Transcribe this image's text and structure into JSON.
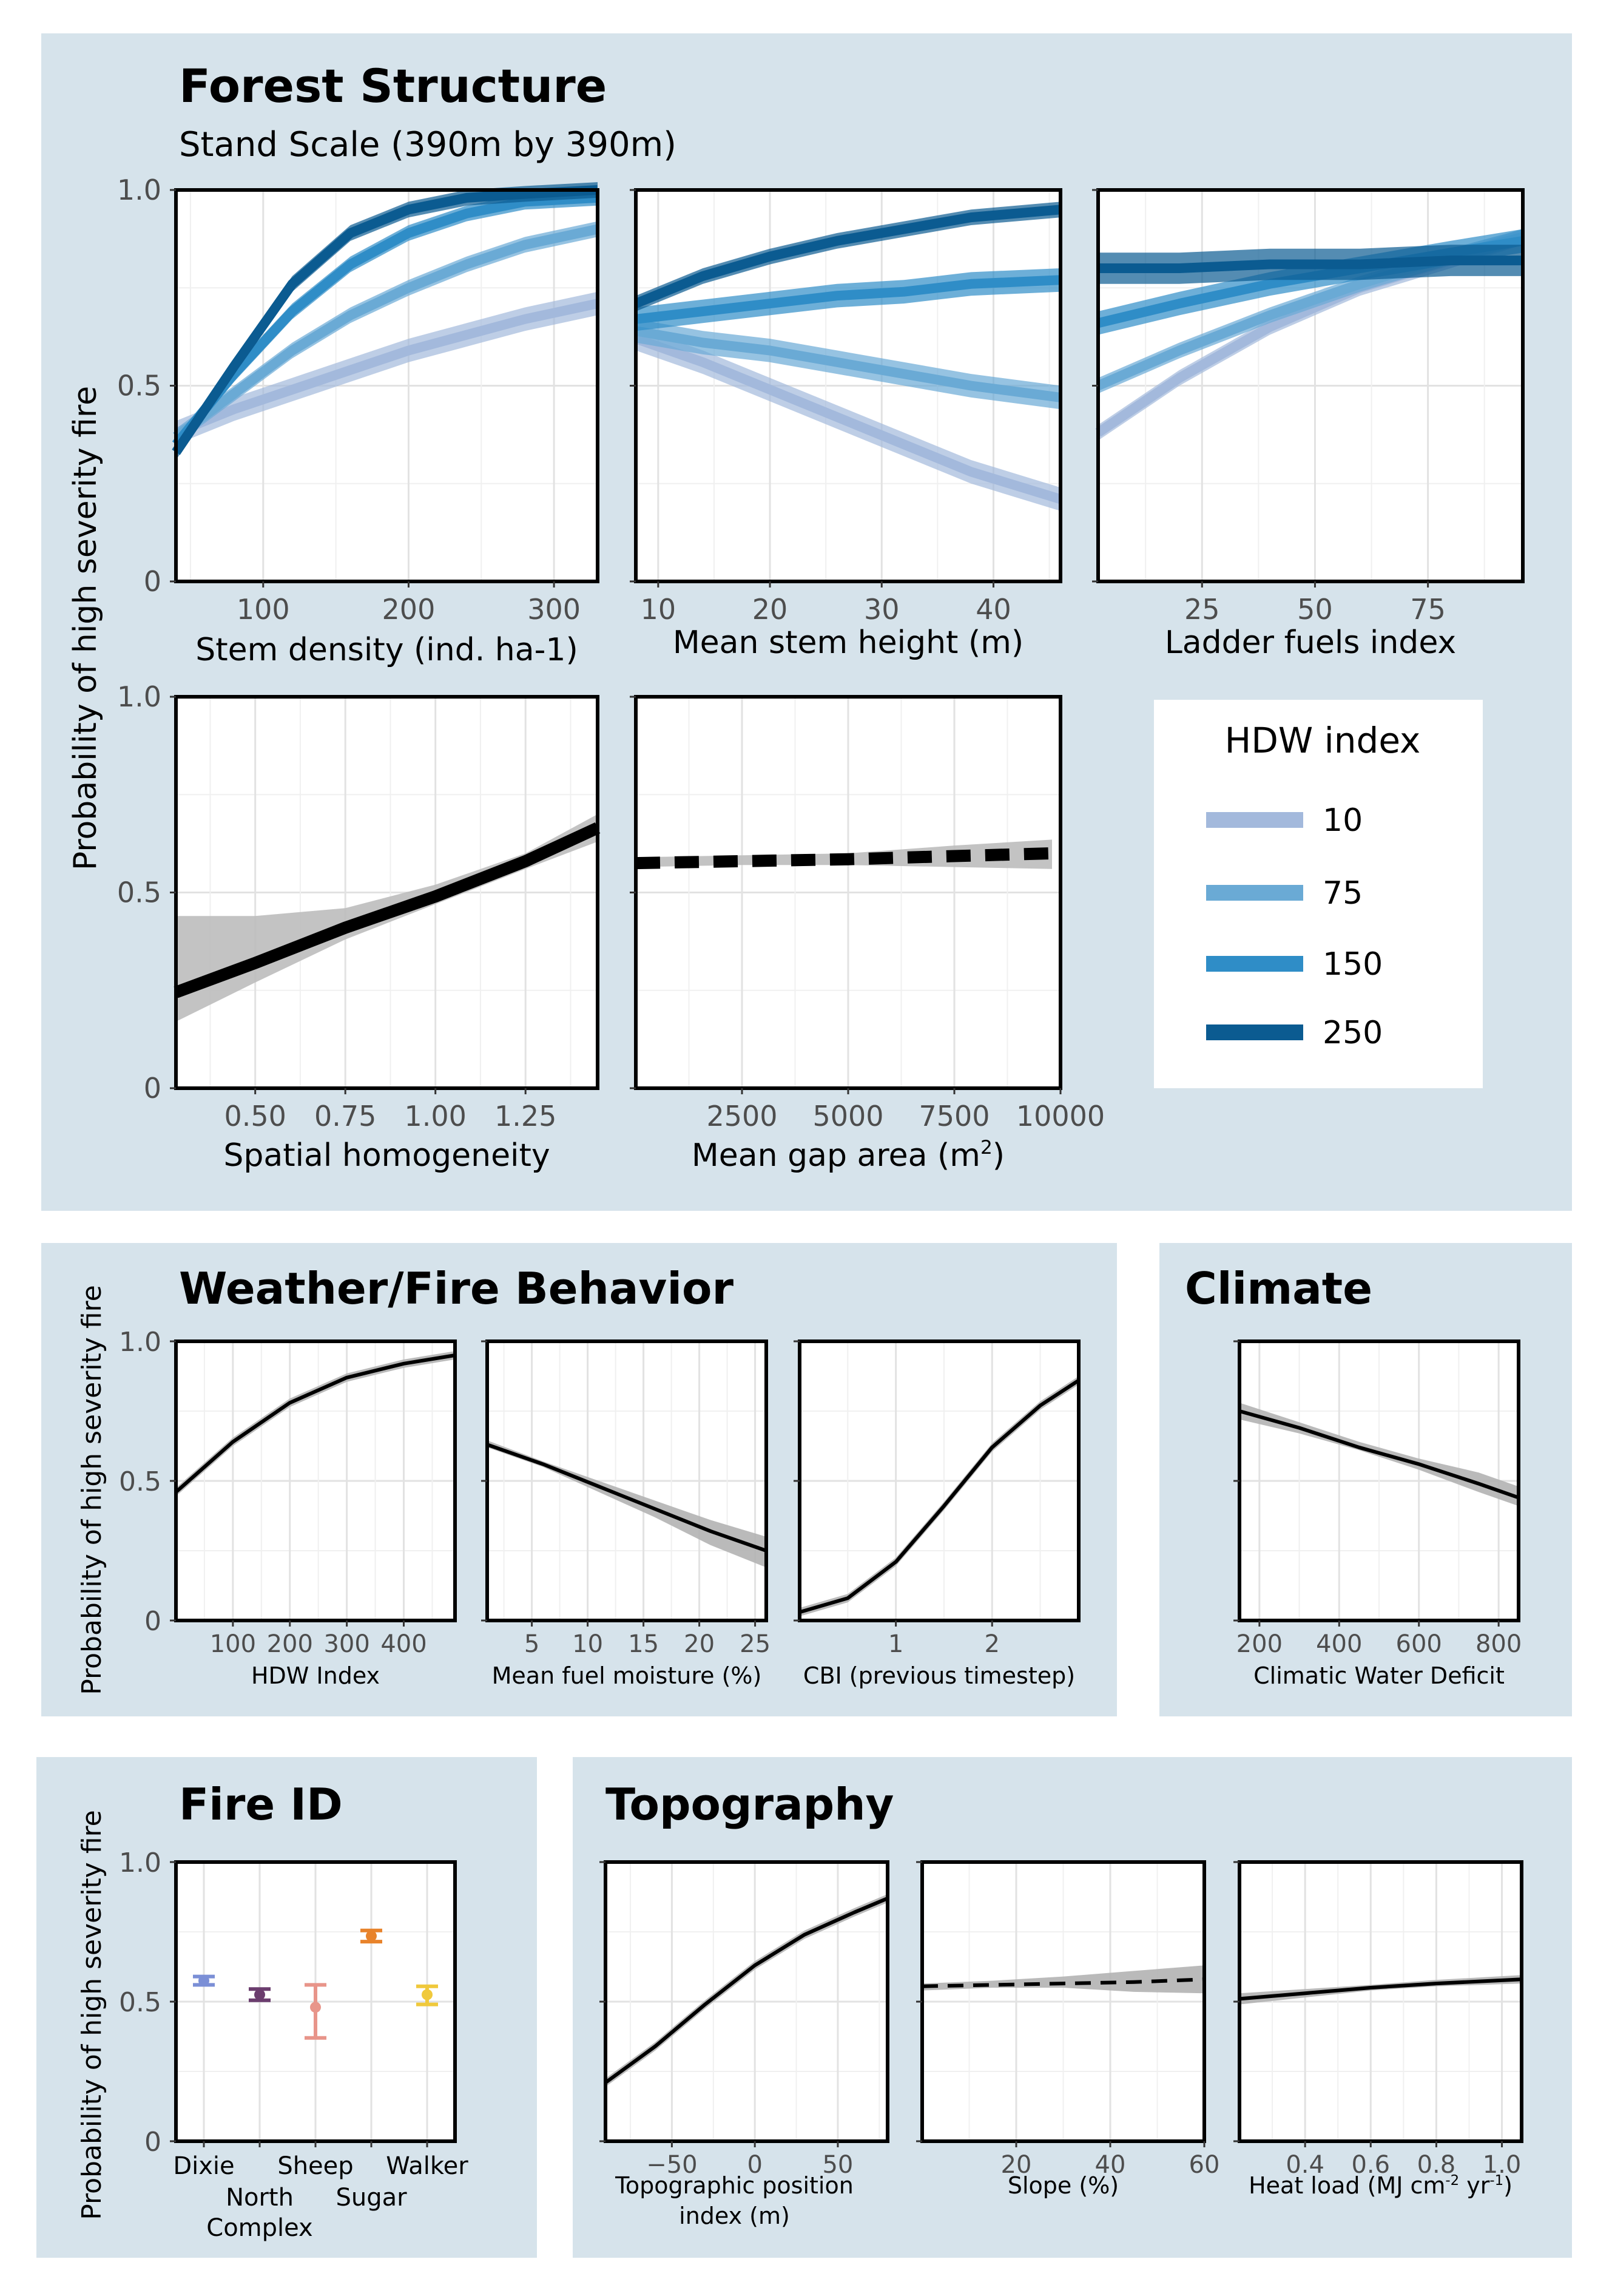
{
  "colors": {
    "panel_bg": "#d6e3eb",
    "band_gray": "#c4c4c4",
    "hdw_10": "#a3b9dc",
    "hdw_75": "#6aaad5",
    "hdw_150": "#2f8dc7",
    "hdw_250": "#0b5b91"
  },
  "sections": {
    "forest": {
      "title": "Forest Structure",
      "subtitle": "Stand Scale (390m by 390m)"
    },
    "weather": {
      "title": "Weather/Fire Behavior"
    },
    "climate": {
      "title": "Climate"
    },
    "fireid": {
      "title": "Fire ID"
    },
    "topo": {
      "title": "Topography"
    }
  },
  "y_axis_label": "Probability of high severity fire",
  "legend": {
    "title": "HDW index",
    "items": [
      {
        "label": "10",
        "color": "#a3b9dc"
      },
      {
        "label": "75",
        "color": "#6aaad5"
      },
      {
        "label": "150",
        "color": "#2f8dc7"
      },
      {
        "label": "250",
        "color": "#0b5b91"
      }
    ]
  },
  "chart_data": [
    {
      "id": "stem_density",
      "type": "line",
      "xlabel": "Stem density (ind. ha-1)",
      "xlim": [
        40,
        330
      ],
      "xticks": [
        100,
        200,
        300
      ],
      "xticklabels": [
        "100",
        "200",
        "300"
      ],
      "ylim": [
        0,
        1
      ],
      "yticks": [
        0,
        0.5,
        1.0
      ],
      "yticklabels": [
        "0",
        "0.5",
        "1.0"
      ],
      "x": [
        40,
        80,
        120,
        160,
        200,
        240,
        280,
        330
      ],
      "series": [
        {
          "name": "10",
          "y": [
            0.38,
            0.44,
            0.49,
            0.54,
            0.59,
            0.63,
            0.67,
            0.71
          ],
          "hw": 0.03
        },
        {
          "name": "75",
          "y": [
            0.37,
            0.48,
            0.59,
            0.68,
            0.75,
            0.81,
            0.86,
            0.9
          ],
          "hw": 0.02
        },
        {
          "name": "150",
          "y": [
            0.35,
            0.53,
            0.69,
            0.81,
            0.89,
            0.94,
            0.97,
            0.98
          ],
          "hw": 0.02
        },
        {
          "name": "250",
          "y": [
            0.33,
            0.55,
            0.76,
            0.89,
            0.95,
            0.98,
            0.99,
            1.0
          ],
          "hw": 0.02
        }
      ]
    },
    {
      "id": "stem_height",
      "type": "line",
      "xlabel": "Mean stem height (m)",
      "xlim": [
        8,
        46
      ],
      "xticks": [
        10,
        20,
        30,
        40
      ],
      "xticklabels": [
        "10",
        "20",
        "30",
        "40"
      ],
      "ylim": [
        0,
        1
      ],
      "yticks": [
        0,
        0.5,
        1.0
      ],
      "yticklabels": [
        "",
        "",
        ""
      ],
      "x": [
        8,
        14,
        20,
        26,
        32,
        38,
        46
      ],
      "series": [
        {
          "name": "10",
          "y": [
            0.62,
            0.56,
            0.49,
            0.42,
            0.35,
            0.28,
            0.21
          ],
          "hw": 0.03
        },
        {
          "name": "75",
          "y": [
            0.64,
            0.61,
            0.59,
            0.56,
            0.53,
            0.5,
            0.47
          ],
          "hw": 0.03
        },
        {
          "name": "150",
          "y": [
            0.67,
            0.69,
            0.71,
            0.73,
            0.74,
            0.76,
            0.77
          ],
          "hw": 0.03
        },
        {
          "name": "250",
          "y": [
            0.71,
            0.78,
            0.83,
            0.87,
            0.9,
            0.93,
            0.95
          ],
          "hw": 0.02
        }
      ]
    },
    {
      "id": "ladder_fuels",
      "type": "line",
      "xlabel": "Ladder fuels index",
      "xlim": [
        2,
        96
      ],
      "xticks": [
        25,
        50,
        75
      ],
      "xticklabels": [
        "25",
        "50",
        "75"
      ],
      "ylim": [
        0,
        1
      ],
      "yticks": [
        0,
        0.5,
        1.0
      ],
      "yticklabels": [
        "",
        "",
        ""
      ],
      "x": [
        2,
        20,
        40,
        60,
        80,
        96
      ],
      "series": [
        {
          "name": "10",
          "y": [
            0.38,
            0.52,
            0.65,
            0.75,
            0.82,
            0.88
          ],
          "hw": 0.02
        },
        {
          "name": "75",
          "y": [
            0.5,
            0.59,
            0.68,
            0.76,
            0.83,
            0.88
          ],
          "hw": 0.02
        },
        {
          "name": "150",
          "y": [
            0.66,
            0.71,
            0.76,
            0.8,
            0.84,
            0.87
          ],
          "hw": 0.03
        },
        {
          "name": "250",
          "y": [
            0.8,
            0.8,
            0.81,
            0.81,
            0.82,
            0.82
          ],
          "hw": 0.04
        }
      ]
    },
    {
      "id": "spatial_homog",
      "type": "line",
      "xlabel": "Spatial homogeneity",
      "xlim": [
        0.28,
        1.45
      ],
      "xticks": [
        0.5,
        0.75,
        1.0,
        1.25
      ],
      "xticklabels": [
        "0.50",
        "0.75",
        "1.00",
        "1.25"
      ],
      "ylim": [
        0,
        1
      ],
      "yticks": [
        0,
        0.5,
        1.0
      ],
      "yticklabels": [
        "0",
        "0.5",
        "1.0"
      ],
      "x": [
        0.28,
        0.5,
        0.75,
        1.0,
        1.25,
        1.45
      ],
      "series": [
        {
          "name": "",
          "y": [
            0.245,
            0.32,
            0.41,
            0.49,
            0.58,
            0.665
          ],
          "lo": [
            0.17,
            0.27,
            0.38,
            0.47,
            0.56,
            0.63
          ],
          "hi": [
            0.44,
            0.44,
            0.46,
            0.52,
            0.6,
            0.7
          ]
        }
      ]
    },
    {
      "id": "gap_area",
      "type": "line",
      "dashed": true,
      "xlabel": "Mean gap area (m",
      "xlabel_sup": "2",
      "xlabel_end": ")",
      "xlim": [
        0,
        10000
      ],
      "xticks": [
        2500,
        5000,
        7500,
        10000
      ],
      "xticklabels": [
        "2500",
        "5000",
        "7500",
        "10000"
      ],
      "ylim": [
        0,
        1
      ],
      "yticks": [
        0,
        0.5,
        1.0
      ],
      "yticklabels": [
        "",
        "",
        ""
      ],
      "x": [
        0,
        2500,
        5000,
        7500,
        9800
      ],
      "series": [
        {
          "name": "",
          "y": [
            0.575,
            0.58,
            0.585,
            0.593,
            0.6
          ],
          "lo": [
            0.565,
            0.57,
            0.57,
            0.565,
            0.56
          ],
          "hi": [
            0.59,
            0.595,
            0.6,
            0.62,
            0.635
          ]
        }
      ]
    },
    {
      "id": "hdw_index",
      "type": "line",
      "xlabel": "HDW Index",
      "xlim": [
        0,
        490
      ],
      "xticks": [
        100,
        200,
        300,
        400
      ],
      "xticklabels": [
        "100",
        "200",
        "300",
        "400"
      ],
      "ylim": [
        0,
        1
      ],
      "yticks": [
        0,
        0.5,
        1.0
      ],
      "yticklabels": [
        "0",
        "0.5",
        "1.0"
      ],
      "x": [
        0,
        100,
        200,
        300,
        400,
        490
      ],
      "series": [
        {
          "name": "",
          "y": [
            0.46,
            0.64,
            0.78,
            0.87,
            0.92,
            0.95
          ],
          "hw": 0.015
        }
      ]
    },
    {
      "id": "fuel_moisture",
      "type": "line",
      "xlabel": "Mean fuel moisture (%)",
      "xlim": [
        1,
        26
      ],
      "xticks": [
        5,
        10,
        15,
        20,
        25
      ],
      "xticklabels": [
        "5",
        "10",
        "15",
        "20",
        "25"
      ],
      "ylim": [
        0,
        1
      ],
      "yticks": [
        0,
        0.5,
        1.0
      ],
      "yticklabels": [
        "",
        "",
        ""
      ],
      "x": [
        1,
        6,
        11,
        16,
        21,
        26
      ],
      "series": [
        {
          "name": "",
          "y": [
            0.63,
            0.56,
            0.48,
            0.4,
            0.32,
            0.25
          ],
          "lo": [
            0.62,
            0.55,
            0.46,
            0.37,
            0.27,
            0.19
          ],
          "hi": [
            0.645,
            0.57,
            0.5,
            0.43,
            0.36,
            0.3
          ]
        }
      ]
    },
    {
      "id": "cbi_prev",
      "type": "line",
      "xlabel": "CBI (previous timestep)",
      "xlim": [
        0,
        2.9
      ],
      "xticks": [
        1,
        2
      ],
      "xticklabels": [
        "1",
        "2"
      ],
      "ylim": [
        0,
        1
      ],
      "yticks": [
        0,
        0.5,
        1.0
      ],
      "yticklabels": [
        "",
        "",
        ""
      ],
      "x": [
        0,
        0.5,
        1.0,
        1.5,
        2.0,
        2.5,
        2.9
      ],
      "series": [
        {
          "name": "",
          "y": [
            0.03,
            0.08,
            0.21,
            0.41,
            0.62,
            0.77,
            0.86
          ],
          "hw": 0.015
        }
      ]
    },
    {
      "id": "cwd",
      "type": "line",
      "xlabel": "Climatic Water Deficit",
      "xlim": [
        150,
        850
      ],
      "xticks": [
        200,
        400,
        600,
        800
      ],
      "xticklabels": [
        "200",
        "400",
        "600",
        "800"
      ],
      "ylim": [
        0,
        1
      ],
      "yticks": [
        0,
        0.5,
        1.0
      ],
      "yticklabels": [
        "",
        "",
        ""
      ],
      "x": [
        150,
        300,
        450,
        600,
        750,
        850
      ],
      "series": [
        {
          "name": "",
          "y": [
            0.75,
            0.69,
            0.62,
            0.56,
            0.49,
            0.44
          ],
          "lo": [
            0.72,
            0.67,
            0.61,
            0.54,
            0.46,
            0.41
          ],
          "hi": [
            0.78,
            0.71,
            0.64,
            0.58,
            0.53,
            0.48
          ]
        }
      ]
    },
    {
      "id": "fire_id",
      "type": "scatter",
      "xlabel": "",
      "categories": [
        "Dixie",
        "North Complex",
        "Sheep",
        "Sugar",
        "Walker"
      ],
      "ylim": [
        0,
        1
      ],
      "yticks": [
        0,
        0.5,
        1.0
      ],
      "yticklabels": [
        "0",
        "0.5",
        "1.0"
      ],
      "values": [
        0.575,
        0.525,
        0.48,
        0.735,
        0.525
      ],
      "lower": [
        0.56,
        0.505,
        0.37,
        0.715,
        0.49
      ],
      "upper": [
        0.59,
        0.545,
        0.56,
        0.755,
        0.555
      ],
      "point_colors": [
        "#7b8fd6",
        "#6b3d6e",
        "#e8958a",
        "#e8832b",
        "#f0c93c"
      ],
      "label_rows": [
        0,
        1,
        0,
        1,
        0
      ]
    },
    {
      "id": "tpi",
      "type": "line",
      "xlabel": "Topographic position index (m)",
      "xlabel_lines": [
        "Topographic position",
        "index (m)"
      ],
      "xlim": [
        -90,
        80
      ],
      "xticks": [
        -50,
        0,
        50
      ],
      "xticklabels": [
        "−50",
        "0",
        "50"
      ],
      "ylim": [
        0,
        1
      ],
      "yticks": [
        0,
        0.5,
        1.0
      ],
      "yticklabels": [
        "",
        "",
        ""
      ],
      "x": [
        -90,
        -60,
        -30,
        0,
        30,
        60,
        80
      ],
      "series": [
        {
          "name": "",
          "y": [
            0.21,
            0.34,
            0.49,
            0.63,
            0.74,
            0.82,
            0.87
          ],
          "hw": 0.015
        }
      ]
    },
    {
      "id": "slope",
      "type": "line",
      "dashed": true,
      "xlabel": "Slope (%)",
      "xlim": [
        0,
        60
      ],
      "xticks": [
        20,
        40,
        60
      ],
      "xticklabels": [
        "20",
        "40",
        "60"
      ],
      "ylim": [
        0,
        1
      ],
      "yticks": [
        0,
        0.5,
        1.0
      ],
      "yticklabels": [
        "",
        "",
        ""
      ],
      "x": [
        0,
        15,
        30,
        45,
        60
      ],
      "series": [
        {
          "name": "",
          "y": [
            0.555,
            0.56,
            0.565,
            0.57,
            0.58
          ],
          "lo": [
            0.54,
            0.55,
            0.55,
            0.535,
            0.53
          ],
          "hi": [
            0.565,
            0.575,
            0.59,
            0.61,
            0.63
          ]
        }
      ]
    },
    {
      "id": "heat_load",
      "type": "line",
      "xlabel": "Heat load (MJ cm-2 yr-1)",
      "xlabel_parts": [
        "Heat load  (MJ cm",
        "-2",
        " yr",
        "-1",
        ")"
      ],
      "xlim": [
        0.2,
        1.06
      ],
      "xticks": [
        0.4,
        0.6,
        0.8,
        1.0
      ],
      "xticklabels": [
        "0.4",
        "0.6",
        "0.8",
        "1.0"
      ],
      "ylim": [
        0,
        1
      ],
      "yticks": [
        0,
        0.5,
        1.0
      ],
      "yticklabels": [
        "",
        "",
        ""
      ],
      "x": [
        0.2,
        0.4,
        0.6,
        0.8,
        1.06
      ],
      "series": [
        {
          "name": "",
          "y": [
            0.51,
            0.53,
            0.55,
            0.565,
            0.58
          ],
          "lo": [
            0.49,
            0.515,
            0.54,
            0.555,
            0.565
          ],
          "hi": [
            0.53,
            0.545,
            0.56,
            0.578,
            0.595
          ]
        }
      ]
    }
  ]
}
